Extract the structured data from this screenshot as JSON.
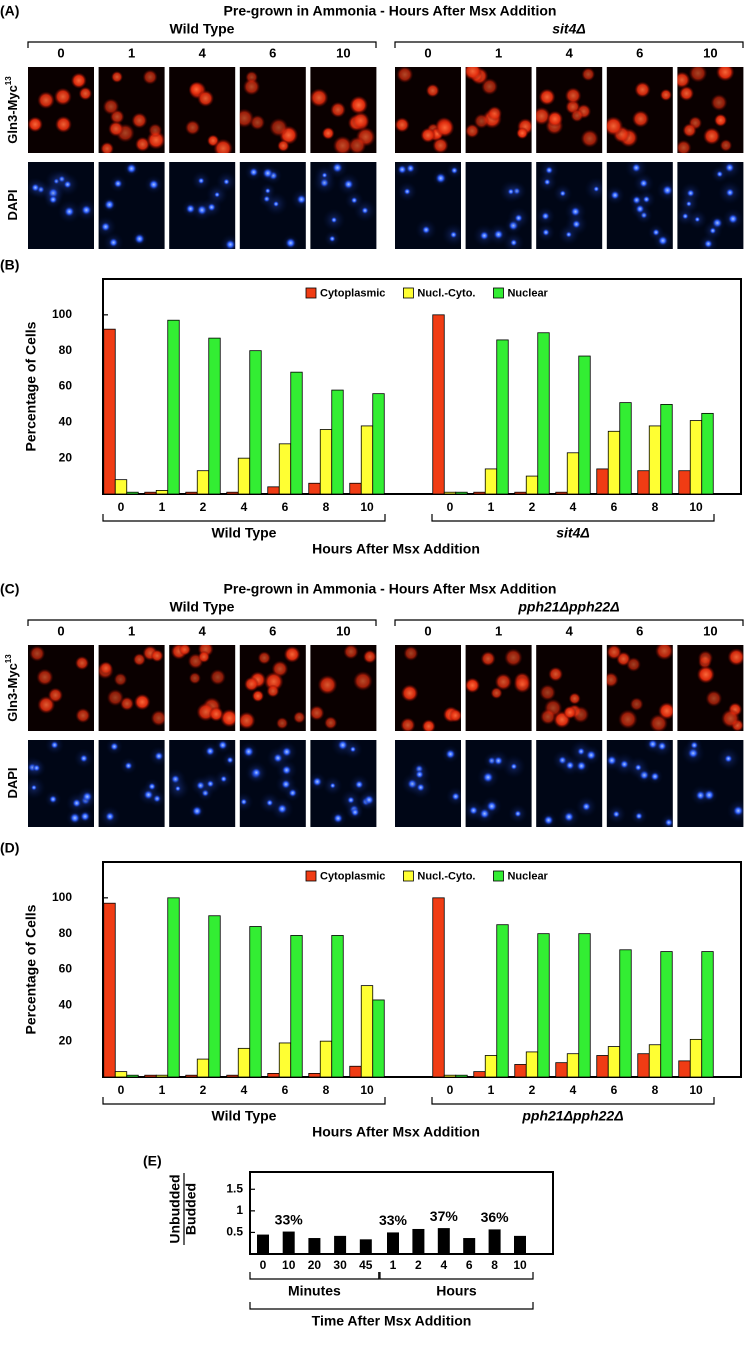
{
  "figure": {
    "panels": [
      {
        "label": "(A)",
        "title": "Pre-grown in Ammonia - Hours After Msx Addition",
        "strains": [
          {
            "name": "Wild Type",
            "hours": [
              "0",
              "1",
              "4",
              "6",
              "10"
            ]
          },
          {
            "name": "sit4Δ",
            "hours": [
              "0",
              "1",
              "4",
              "6",
              "10"
            ]
          }
        ],
        "rows": [
          {
            "label": "Gln3-Myc",
            "sup": "13"
          },
          {
            "label": "DAPI"
          }
        ]
      },
      {
        "label": "(C)",
        "title": "Pre-grown in Ammonia - Hours After Msx Addition",
        "strains": [
          {
            "name": "Wild Type",
            "hours": [
              "0",
              "1",
              "4",
              "6",
              "10"
            ]
          },
          {
            "name": "pph21Δpph22Δ",
            "hours": [
              "0",
              "1",
              "4",
              "6",
              "10"
            ]
          }
        ],
        "rows": [
          {
            "label": "Gln3-Myc",
            "sup": "13"
          },
          {
            "label": "DAPI"
          }
        ]
      }
    ]
  },
  "chart_data": [
    {
      "type": "bar",
      "panel": "(B)",
      "ylabel": "Percentage of Cells",
      "xlabel": "Hours After Msx Addition",
      "ylim": [
        0,
        120
      ],
      "yticks": [
        20,
        40,
        60,
        80,
        100
      ],
      "series": [
        {
          "name": "Cytoplasmic",
          "color": "#f03c14"
        },
        {
          "name": "Nucl.-Cyto.",
          "color": "#ffff33"
        },
        {
          "name": "Nuclear",
          "color": "#33ee33"
        }
      ],
      "groups": [
        {
          "name": "Wild Type",
          "categories": [
            "0",
            "1",
            "2",
            "4",
            "6",
            "8",
            "10"
          ],
          "series": [
            {
              "values": [
                92,
                1,
                1,
                1,
                4,
                6,
                6
              ]
            },
            {
              "values": [
                8,
                2,
                13,
                20,
                28,
                36,
                38
              ]
            },
            {
              "values": [
                1,
                97,
                87,
                80,
                68,
                58,
                56
              ]
            }
          ]
        },
        {
          "name": "sit4Δ",
          "categories": [
            "0",
            "1",
            "2",
            "4",
            "6",
            "8",
            "10"
          ],
          "series": [
            {
              "values": [
                100,
                1,
                1,
                1,
                14,
                13,
                13
              ]
            },
            {
              "values": [
                1,
                14,
                10,
                23,
                35,
                38,
                41
              ]
            },
            {
              "values": [
                1,
                86,
                90,
                77,
                51,
                50,
                45
              ]
            }
          ]
        }
      ]
    },
    {
      "type": "bar",
      "panel": "(D)",
      "ylabel": "Percentage of Cells",
      "xlabel": "Hours After Msx Addition",
      "ylim": [
        0,
        120
      ],
      "yticks": [
        20,
        40,
        60,
        80,
        100
      ],
      "series": [
        {
          "name": "Cytoplasmic",
          "color": "#f03c14"
        },
        {
          "name": "Nucl.-Cyto.",
          "color": "#ffff33"
        },
        {
          "name": "Nuclear",
          "color": "#33ee33"
        }
      ],
      "groups": [
        {
          "name": "Wild Type",
          "categories": [
            "0",
            "1",
            "2",
            "4",
            "6",
            "8",
            "10"
          ],
          "series": [
            {
              "values": [
                97,
                1,
                1,
                1,
                2,
                2,
                6
              ]
            },
            {
              "values": [
                3,
                1,
                10,
                16,
                19,
                20,
                51
              ]
            },
            {
              "values": [
                1,
                100,
                90,
                84,
                79,
                79,
                43
              ]
            }
          ]
        },
        {
          "name": "pph21Δpph22Δ",
          "categories": [
            "0",
            "1",
            "2",
            "4",
            "6",
            "8",
            "10"
          ],
          "series": [
            {
              "values": [
                100,
                3,
                7,
                8,
                12,
                13,
                9
              ]
            },
            {
              "values": [
                1,
                12,
                14,
                13,
                17,
                18,
                21
              ]
            },
            {
              "values": [
                1,
                85,
                80,
                80,
                71,
                70,
                70
              ]
            }
          ]
        }
      ]
    },
    {
      "type": "bar",
      "panel": "(E)",
      "ylabel": {
        "numerator": "Unbudded",
        "denominator": "Budded"
      },
      "xlabel": "Time After Msx Addition",
      "ylim": [
        0,
        1.9
      ],
      "yticks": [
        0.5,
        1,
        1.5
      ],
      "color": "#000000",
      "groups": [
        {
          "name": "Minutes",
          "categories": [
            "0",
            "10",
            "20",
            "30",
            "45"
          ],
          "values": [
            0.45,
            0.52,
            0.37,
            0.42,
            0.34
          ],
          "annotations": [
            null,
            "33%",
            null,
            null,
            null
          ]
        },
        {
          "name": "Hours",
          "categories": [
            "1",
            "2",
            "4",
            "6",
            "8",
            "10"
          ],
          "values": [
            0.5,
            0.58,
            0.6,
            0.37,
            0.57,
            0.42
          ],
          "annotations": [
            "33%",
            null,
            "37%",
            null,
            "36%",
            null
          ]
        }
      ]
    }
  ]
}
